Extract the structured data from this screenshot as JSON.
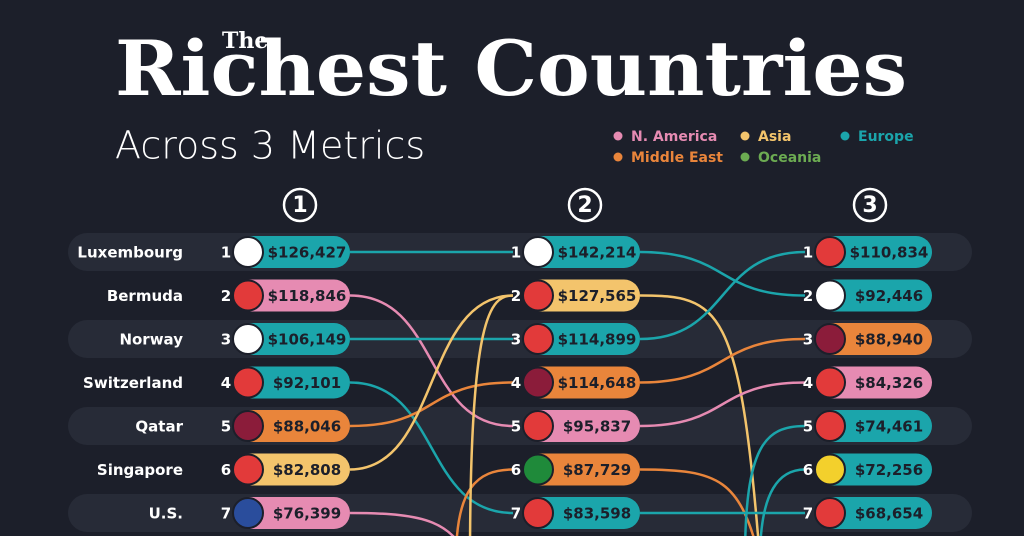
{
  "header": {
    "kicker": "The",
    "title": "Richest Countries",
    "subtitle": "Across 3 Metrics"
  },
  "legend": [
    {
      "name": "N. America",
      "color": "#e68bb2"
    },
    {
      "name": "Middle East",
      "color": "#e9853b"
    },
    {
      "name": "Asia",
      "color": "#f3c46c"
    },
    {
      "name": "Oceania",
      "color": "#6cab52"
    },
    {
      "name": "Europe",
      "color": "#1ba5ab"
    }
  ],
  "rows": [
    "Luxembourg",
    "Bermuda",
    "Norway",
    "Switzerland",
    "Qatar",
    "Singapore",
    "U.S."
  ],
  "columns": [
    {
      "heading": "1",
      "entries": [
        {
          "rank": "1",
          "value": "$126,427",
          "color": "#1ba5ab"
        },
        {
          "rank": "2",
          "value": "$118,846",
          "color": "#e68bb2"
        },
        {
          "rank": "3",
          "value": "$106,149",
          "color": "#1ba5ab"
        },
        {
          "rank": "4",
          "value": "$92,101",
          "color": "#1ba5ab"
        },
        {
          "rank": "5",
          "value": "$88,046",
          "color": "#e9853b"
        },
        {
          "rank": "6",
          "value": "$82,808",
          "color": "#f3c46c"
        },
        {
          "rank": "7",
          "value": "$76,399",
          "color": "#e68bb2"
        }
      ]
    },
    {
      "heading": "2",
      "entries": [
        {
          "rank": "1",
          "value": "$142,214",
          "color": "#1ba5ab"
        },
        {
          "rank": "2",
          "value": "$127,565",
          "color": "#f3c46c"
        },
        {
          "rank": "3",
          "value": "$114,899",
          "color": "#1ba5ab"
        },
        {
          "rank": "4",
          "value": "$114,648",
          "color": "#e9853b"
        },
        {
          "rank": "5",
          "value": "$95,837",
          "color": "#e68bb2"
        },
        {
          "rank": "6",
          "value": "$87,729",
          "color": "#e9853b"
        },
        {
          "rank": "7",
          "value": "$83,598",
          "color": "#1ba5ab"
        }
      ]
    },
    {
      "heading": "3",
      "entries": [
        {
          "rank": "1",
          "value": "$110,834",
          "color": "#1ba5ab"
        },
        {
          "rank": "2",
          "value": "$92,446",
          "color": "#1ba5ab"
        },
        {
          "rank": "3",
          "value": "$88,940",
          "color": "#e9853b"
        },
        {
          "rank": "4",
          "value": "$84,326",
          "color": "#e68bb2"
        },
        {
          "rank": "5",
          "value": "$74,461",
          "color": "#1ba5ab"
        },
        {
          "rank": "6",
          "value": "$72,256",
          "color": "#1ba5ab"
        },
        {
          "rank": "7",
          "value": "$68,654",
          "color": "#1ba5ab"
        }
      ]
    }
  ]
}
